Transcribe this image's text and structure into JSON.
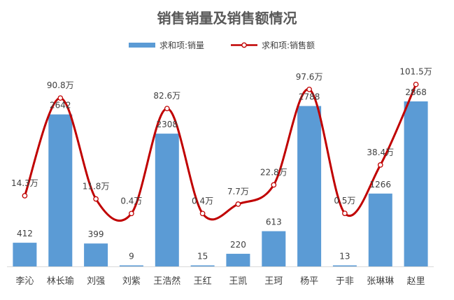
{
  "chart_data": {
    "type": "bar",
    "title": "销售销量及销售额情况",
    "categories": [
      "李沁",
      "林长瑜",
      "刘强",
      "刘紫",
      "王浩然",
      "王红",
      "王凯",
      "王珂",
      "杨平",
      "于非",
      "张琳琳",
      "赵里"
    ],
    "series": [
      {
        "name": "求和项:销量",
        "type": "bar",
        "color": "#5B9BD5",
        "values": [
          412,
          2642,
          399,
          9,
          2308,
          15,
          220,
          613,
          2788,
          13,
          1266,
          2868
        ],
        "labels": [
          "412",
          "2642",
          "399",
          "9",
          "2308",
          "15",
          "220",
          "613",
          "2788",
          "13",
          "1266",
          "2868"
        ]
      },
      {
        "name": "求和项:销售额",
        "type": "line",
        "smooth": true,
        "color": "#C00000",
        "unit": "万",
        "values": [
          14.3,
          90.8,
          11.8,
          0.4,
          82.6,
          0.4,
          7.7,
          22.8,
          97.6,
          0.5,
          38.4,
          101.5
        ],
        "labels": [
          "14.3万",
          "90.8万",
          "11.8万",
          "0.4万",
          "82.6万",
          "0.4万",
          "7.7万",
          "22.8万",
          "97.6万",
          "0.5万",
          "38.4万",
          "101.5万"
        ]
      }
    ],
    "legend_position": "top",
    "grid": false,
    "ylim": [
      0,
      3500
    ],
    "y2lim": [
      0,
      115
    ]
  }
}
